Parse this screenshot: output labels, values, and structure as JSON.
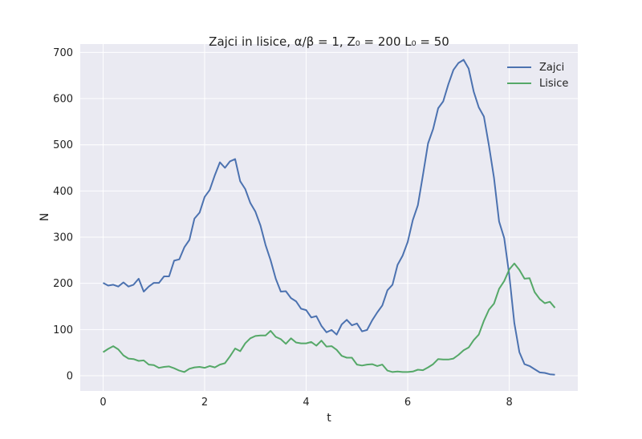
{
  "chart_data": {
    "type": "line",
    "title": "Zajci in lisice, α/β = 1, Z₀ = 200 L₀ = 50",
    "xlabel": "t",
    "ylabel": "N",
    "xlim": [
      -0.45,
      9.35
    ],
    "ylim": [
      -33,
      718
    ],
    "xticks": [
      0,
      2,
      4,
      6,
      8
    ],
    "yticks": [
      0,
      100,
      200,
      300,
      400,
      500,
      600,
      700
    ],
    "grid": true,
    "legend_position": "top-right",
    "series": [
      {
        "name": "Zajci",
        "color": "#4c72b0",
        "x": [
          0.0,
          0.1,
          0.2,
          0.3,
          0.4,
          0.5,
          0.6,
          0.7,
          0.8,
          0.9,
          1.0,
          1.1,
          1.2,
          1.3,
          1.4,
          1.5,
          1.6,
          1.7,
          1.8,
          1.9,
          2.0,
          2.1,
          2.2,
          2.3,
          2.4,
          2.5,
          2.6,
          2.7,
          2.8,
          2.9,
          3.0,
          3.1,
          3.2,
          3.3,
          3.4,
          3.5,
          3.6,
          3.7,
          3.8,
          3.9,
          4.0,
          4.1,
          4.2,
          4.3,
          4.4,
          4.5,
          4.6,
          4.7,
          4.8,
          4.9,
          5.0,
          5.1,
          5.2,
          5.3,
          5.4,
          5.5,
          5.6,
          5.7,
          5.8,
          5.9,
          6.0,
          6.1,
          6.2,
          6.3,
          6.4,
          6.5,
          6.6,
          6.7,
          6.8,
          6.9,
          7.0,
          7.1,
          7.2,
          7.3,
          7.4,
          7.5,
          7.6,
          7.7,
          7.8,
          7.9,
          8.0,
          8.1,
          8.2,
          8.3,
          8.4,
          8.5,
          8.6,
          8.7,
          8.8,
          8.9
        ],
        "values": [
          201,
          195,
          197,
          193,
          202,
          193,
          197,
          210,
          182,
          193,
          201,
          201,
          215,
          215,
          249,
          252,
          278,
          294,
          340,
          353,
          387,
          402,
          434,
          462,
          450,
          464,
          469,
          421,
          404,
          374,
          355,
          325,
          283,
          250,
          210,
          182,
          183,
          168,
          161,
          145,
          142,
          126,
          129,
          108,
          94,
          99,
          89,
          111,
          121,
          109,
          113,
          96,
          99,
          120,
          137,
          152,
          185,
          197,
          240,
          260,
          290,
          337,
          369,
          434,
          503,
          534,
          579,
          594,
          631,
          662,
          677,
          684,
          665,
          615,
          581,
          561,
          498,
          428,
          334,
          298,
          218,
          114,
          51,
          25,
          21,
          14,
          7,
          6,
          3,
          2
        ]
      },
      {
        "name": "Lisice",
        "color": "#55a868",
        "x": [
          0.0,
          0.1,
          0.2,
          0.3,
          0.4,
          0.5,
          0.6,
          0.7,
          0.8,
          0.9,
          1.0,
          1.1,
          1.2,
          1.3,
          1.4,
          1.5,
          1.6,
          1.7,
          1.8,
          1.9,
          2.0,
          2.1,
          2.2,
          2.3,
          2.4,
          2.5,
          2.6,
          2.7,
          2.8,
          2.9,
          3.0,
          3.1,
          3.2,
          3.3,
          3.4,
          3.5,
          3.6,
          3.7,
          3.8,
          3.9,
          4.0,
          4.1,
          4.2,
          4.3,
          4.4,
          4.5,
          4.6,
          4.7,
          4.8,
          4.9,
          5.0,
          5.1,
          5.2,
          5.3,
          5.4,
          5.5,
          5.6,
          5.7,
          5.8,
          5.9,
          6.0,
          6.1,
          6.2,
          6.3,
          6.4,
          6.5,
          6.6,
          6.7,
          6.8,
          6.9,
          7.0,
          7.1,
          7.2,
          7.3,
          7.4,
          7.5,
          7.6,
          7.7,
          7.8,
          7.9,
          8.0,
          8.1,
          8.2,
          8.3,
          8.4,
          8.5,
          8.6,
          8.7,
          8.8,
          8.9
        ],
        "values": [
          51,
          58,
          64,
          57,
          44,
          37,
          36,
          32,
          33,
          24,
          23,
          17,
          19,
          20,
          16,
          11,
          8,
          15,
          18,
          19,
          17,
          21,
          18,
          24,
          27,
          42,
          59,
          53,
          70,
          81,
          86,
          87,
          87,
          97,
          84,
          79,
          69,
          81,
          72,
          70,
          70,
          73,
          65,
          76,
          63,
          64,
          56,
          43,
          39,
          39,
          24,
          22,
          24,
          25,
          21,
          24,
          11,
          8,
          9,
          8,
          8,
          9,
          13,
          12,
          18,
          25,
          36,
          35,
          35,
          37,
          45,
          55,
          61,
          77,
          89,
          119,
          143,
          156,
          188,
          205,
          230,
          243,
          229,
          210,
          211,
          181,
          166,
          157,
          160,
          147
        ]
      }
    ]
  }
}
